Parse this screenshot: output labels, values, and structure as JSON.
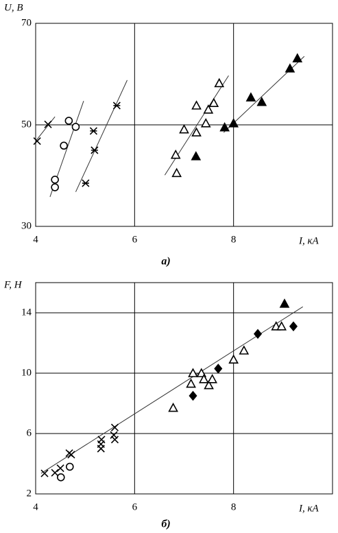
{
  "chart_data": [
    {
      "type": "scatter",
      "caption": "а)",
      "ylabel": "U, В",
      "xlabel": "I, кА",
      "xlim": [
        4,
        10
      ],
      "xticks": [
        4,
        6,
        8
      ],
      "ylim": [
        30,
        70
      ],
      "yticks": [
        30,
        50,
        70
      ],
      "grid": true,
      "color": "#000000",
      "series": [
        {
          "marker": "x",
          "x": [
            4.03,
            4.25
          ],
          "y": [
            46.8,
            50.1
          ]
        },
        {
          "marker": "star",
          "x": [
            5.17,
            5.19,
            5.01,
            5.64
          ],
          "y": [
            48.8,
            45.0,
            38.5,
            53.8
          ]
        },
        {
          "marker": "circle",
          "x": [
            4.39,
            4.39,
            4.57,
            4.67,
            4.81
          ],
          "y": [
            39.2,
            37.7,
            45.9,
            50.8,
            49.6
          ]
        },
        {
          "marker": "triangle-open",
          "x": [
            6.85,
            6.83,
            7.0,
            7.25,
            7.25,
            7.44,
            7.49,
            7.6,
            7.71
          ],
          "y": [
            40.5,
            44.1,
            49.1,
            48.5,
            53.8,
            50.3,
            53.0,
            54.3,
            58.2
          ]
        },
        {
          "marker": "triangle-filled",
          "x": [
            7.24,
            7.82,
            8.0,
            8.35,
            8.57,
            9.14,
            9.29
          ],
          "y": [
            43.8,
            49.5,
            50.3,
            55.4,
            54.5,
            61.1,
            63.1
          ]
        }
      ],
      "fit_lines": [
        {
          "x": [
            4.0,
            4.39
          ],
          "y": [
            46.8,
            51.6
          ]
        },
        {
          "x": [
            4.29,
            4.97
          ],
          "y": [
            35.8,
            54.7
          ]
        },
        {
          "x": [
            4.81,
            5.85
          ],
          "y": [
            36.8,
            58.8
          ]
        },
        {
          "x": [
            6.61,
            7.9
          ],
          "y": [
            40.1,
            59.7
          ]
        },
        {
          "x": [
            7.8,
            9.43
          ],
          "y": [
            48.5,
            63.5
          ]
        }
      ]
    },
    {
      "type": "scatter",
      "caption": "б)",
      "ylabel": "F, Н",
      "xlabel": "I, кА",
      "xlim": [
        4,
        10
      ],
      "xticks": [
        4,
        6,
        8
      ],
      "ylim": [
        2,
        16
      ],
      "yticks": [
        2,
        6,
        10,
        14
      ],
      "grid": true,
      "color": "#000000",
      "series": [
        {
          "marker": "x",
          "x": [
            4.18,
            4.39,
            4.5,
            4.68,
            4.72,
            5.32,
            5.32,
            5.33,
            5.6,
            5.58,
            5.6
          ],
          "y": [
            3.36,
            3.4,
            3.7,
            4.7,
            4.6,
            5.3,
            5.0,
            5.6,
            5.6,
            5.9,
            6.4
          ]
        },
        {
          "marker": "circle",
          "x": [
            4.51,
            4.69
          ],
          "y": [
            3.1,
            3.8
          ]
        },
        {
          "marker": "triangle-open",
          "x": [
            6.78,
            7.14,
            7.18,
            7.35,
            7.4,
            7.5,
            7.57,
            8.0,
            8.21,
            8.86,
            8.97
          ],
          "y": [
            7.7,
            9.3,
            10.0,
            10.0,
            9.6,
            9.2,
            9.6,
            10.9,
            11.5,
            13.1,
            13.1
          ]
        },
        {
          "marker": "diamond-filled",
          "x": [
            7.18,
            7.69,
            8.49,
            9.21
          ],
          "y": [
            8.5,
            10.3,
            12.6,
            13.1
          ]
        },
        {
          "marker": "triangle-filled",
          "x": [
            9.03
          ],
          "y": [
            14.6
          ]
        }
      ],
      "fit_lines": [
        {
          "x": [
            4.11,
            9.4
          ],
          "y": [
            3.36,
            14.4
          ]
        }
      ]
    }
  ]
}
